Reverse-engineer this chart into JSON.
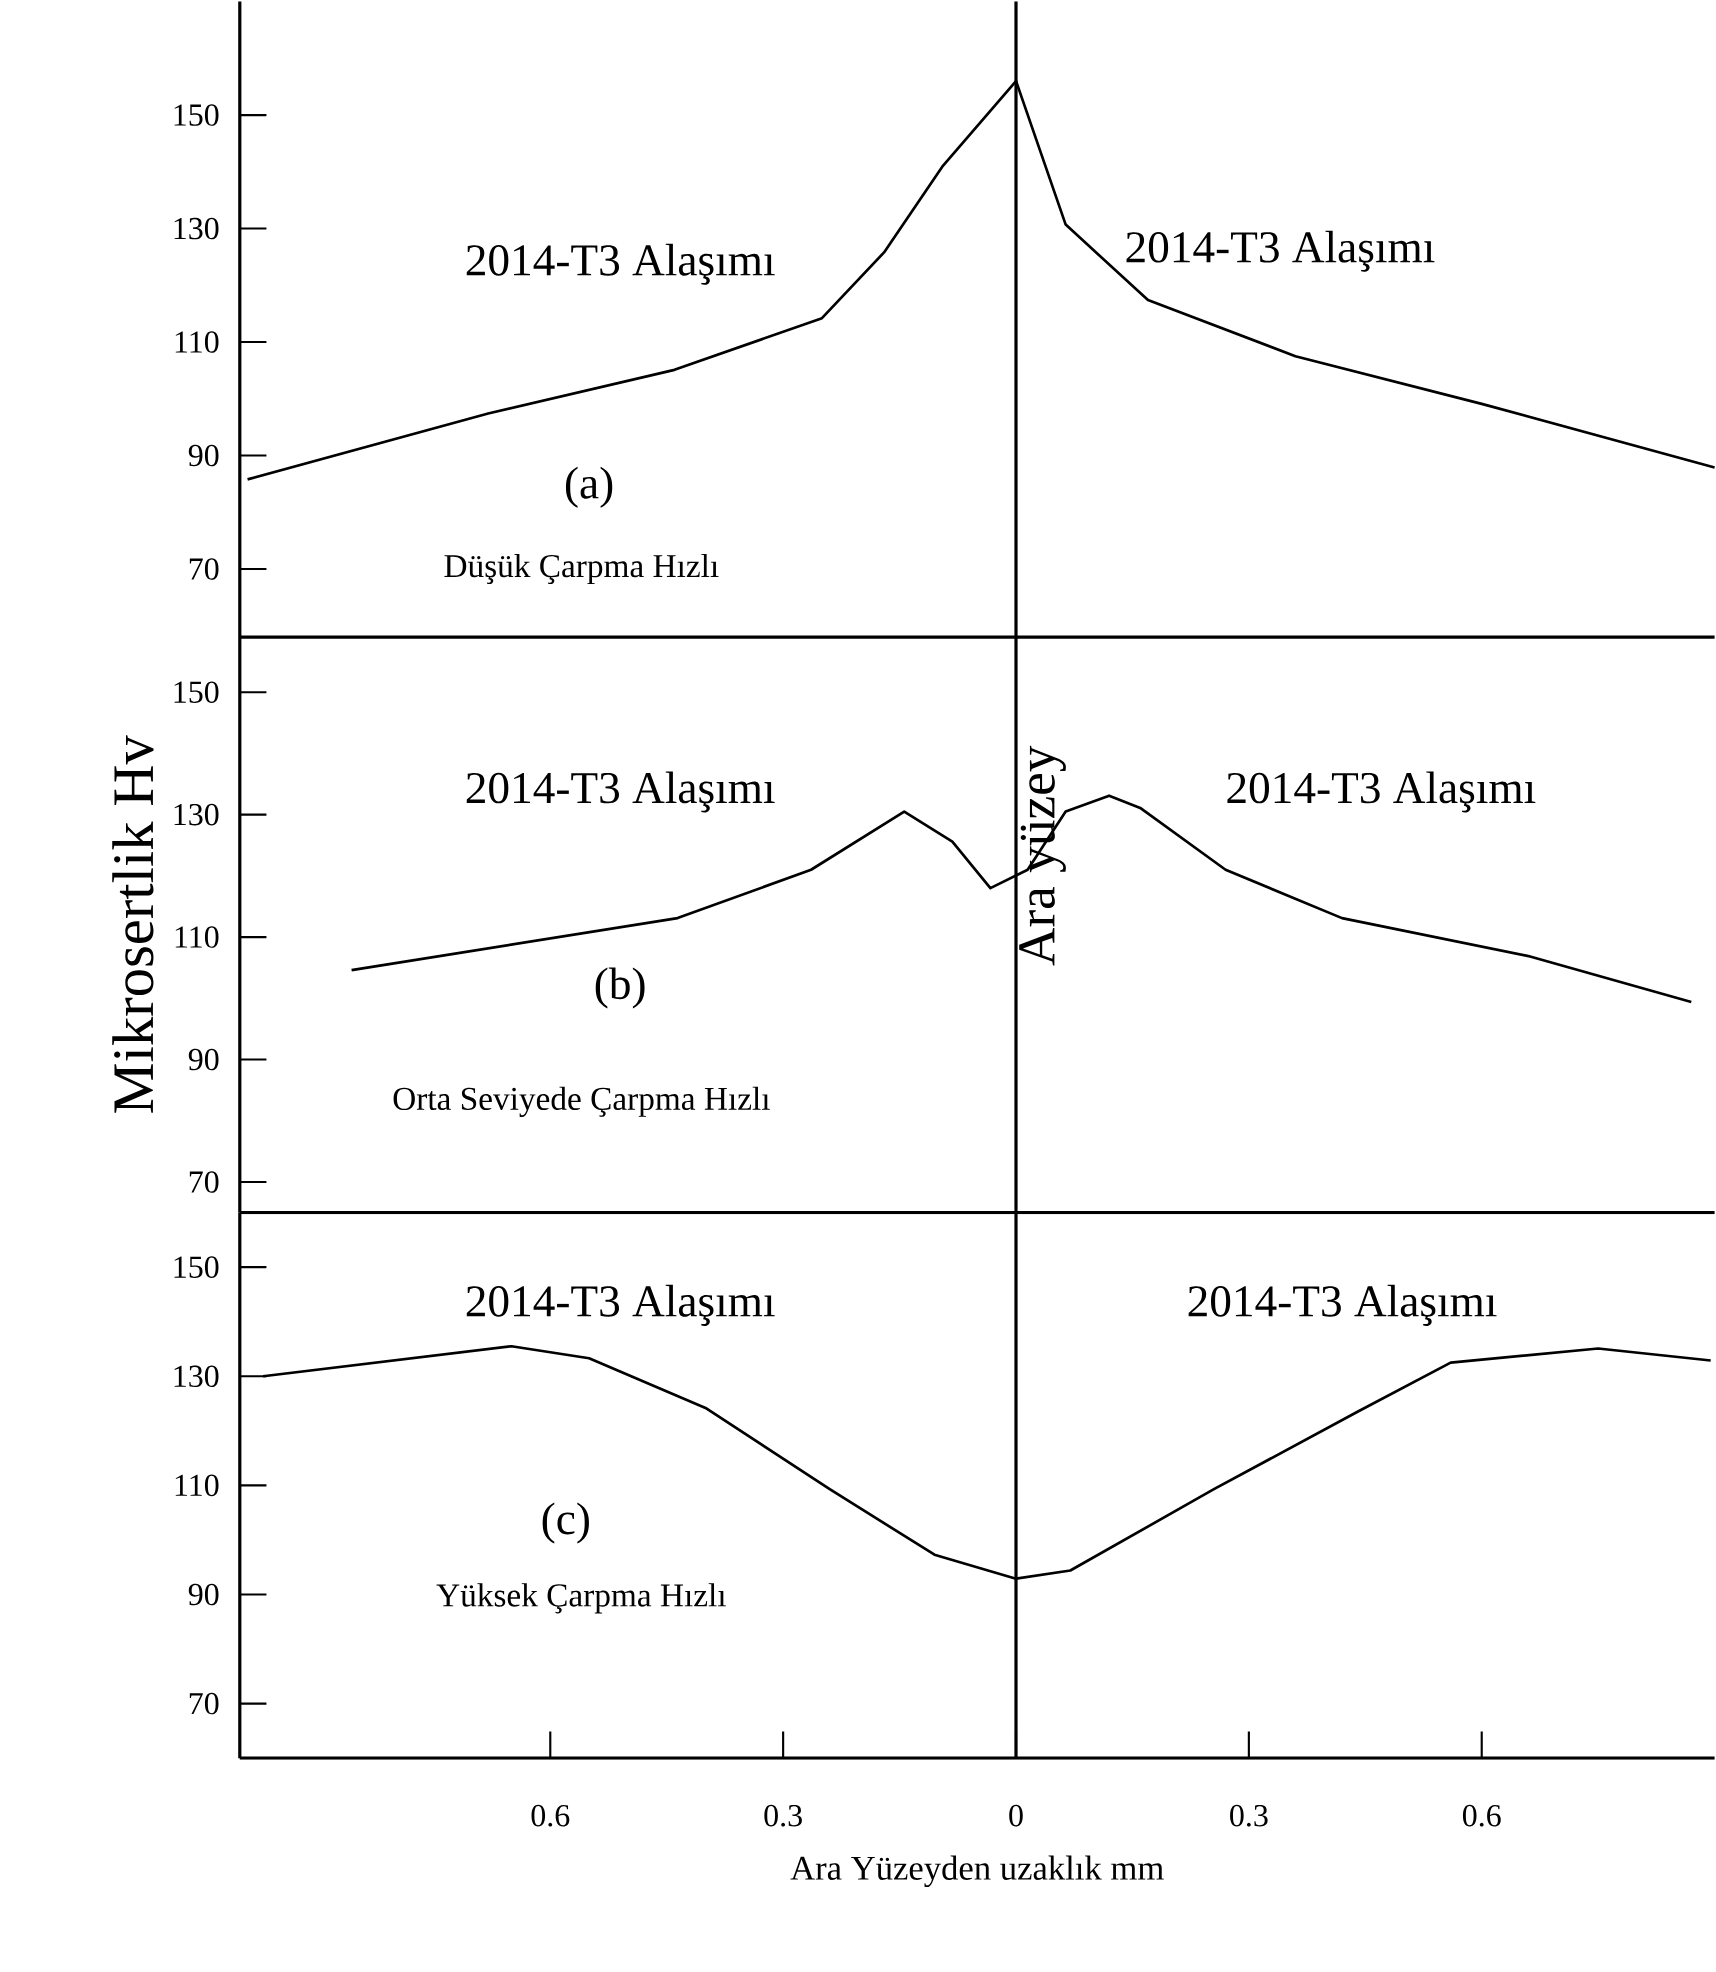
{
  "chart_data": [
    {
      "type": "line",
      "xlim": [
        -1.0,
        0.9
      ],
      "ylim": [
        58,
        170
      ],
      "yticks": [
        70,
        90,
        110,
        130,
        150
      ],
      "tick_labels": "y",
      "grid": false,
      "marker": "none",
      "line_style": "solid",
      "ref_lines": [
        {
          "axis": "x",
          "value": 0,
          "color": "#000000"
        }
      ],
      "annotations": [
        "2014-T3 Alaşımı",
        "2014-T3 Alaşımı",
        "(a)",
        "Düşük Çarpma Hızlı"
      ],
      "series": [
        {
          "color": "#000000",
          "x": [
            -0.99,
            -0.68,
            -0.44,
            -0.25,
            -0.17,
            -0.095,
            0,
            0.064,
            0.17,
            0.36,
            0.6,
            0.9
          ],
          "values": [
            85.8,
            97.4,
            105.1,
            114.2,
            125.8,
            140.9,
            156,
            130.7,
            117.4,
            107.5,
            99.1,
            87.9
          ]
        }
      ]
    },
    {
      "type": "line",
      "xlim": [
        -1.0,
        0.9
      ],
      "ylim": [
        65,
        159
      ],
      "yticks": [
        70,
        90,
        110,
        130,
        150
      ],
      "tick_labels": "y",
      "grid": false,
      "marker": "none",
      "line_style": "solid",
      "ylabel": "Mikrosertlik Hv",
      "ref_lines": [
        {
          "axis": "x",
          "value": 0,
          "label": "Ara yüzey",
          "color": "#000000"
        }
      ],
      "annotations": [
        "2014-T3 Alaşımı",
        "2014-T3 Alaşımı",
        "(b)",
        "Orta Seviyede Çarpma Hızlı"
      ],
      "series": [
        {
          "color": "#000000",
          "x": [
            -0.856,
            -0.436,
            -0.264,
            -0.144,
            -0.082,
            -0.033,
            0.015,
            0.064,
            0.12,
            0.16,
            0.27,
            0.42,
            0.66,
            0.87
          ],
          "values": [
            104.6,
            113.1,
            121.0,
            130.5,
            125.6,
            118.0,
            121.0,
            130.5,
            133.1,
            131.1,
            121.0,
            113.1,
            106.9,
            99.4
          ]
        }
      ]
    },
    {
      "type": "line",
      "xlim": [
        -1.0,
        0.9
      ],
      "ylim": [
        60,
        160
      ],
      "yticks": [
        70,
        90,
        110,
        130,
        150
      ],
      "xticks": [
        {
          "value": -0.6,
          "label": "0.6"
        },
        {
          "value": -0.3,
          "label": "0.3"
        },
        0,
        0.3,
        0.6
      ],
      "grid": false,
      "marker": "none",
      "line_style": "solid",
      "xlabel": "Ara Yüzeyden uzaklık mm",
      "ref_lines": [
        {
          "axis": "x",
          "value": 0,
          "color": "#000000"
        }
      ],
      "annotations": [
        "2014-T3 Alaşımı",
        "2014-T3 Alaşımı",
        "(c)",
        "Yüksek Çarpma Hızlı"
      ],
      "series": [
        {
          "color": "#000000",
          "x": [
            -0.97,
            -0.65,
            -0.55,
            -0.4,
            -0.24,
            -0.105,
            0,
            0.07,
            0.255,
            0.44,
            0.56,
            0.75,
            0.895
          ],
          "values": [
            130,
            135.5,
            133.3,
            124.2,
            109.3,
            97.3,
            92.9,
            94.4,
            109.3,
            123.5,
            132.5,
            135.1,
            132.9
          ]
        }
      ]
    }
  ]
}
